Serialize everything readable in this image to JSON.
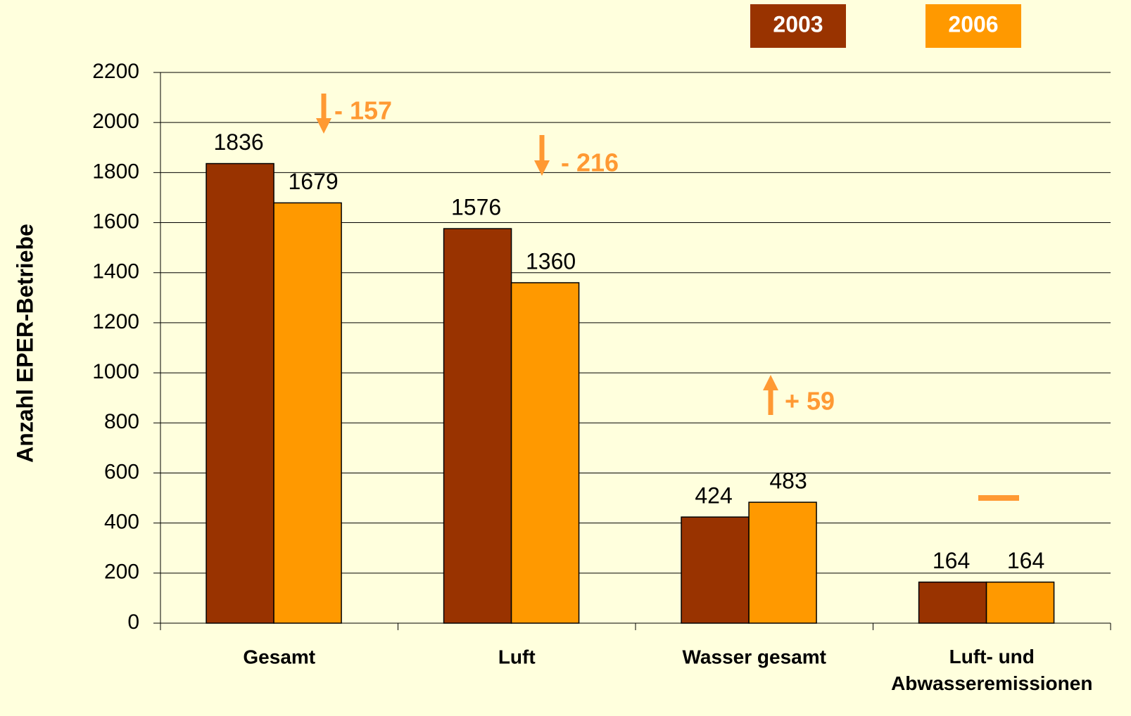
{
  "chart_data": {
    "type": "bar",
    "y_label": "Anzahl EPER-Betriebe",
    "categories": [
      "Gesamt",
      "Luft",
      "Wasser gesamt",
      "Luft- und Abwasseremissionen"
    ],
    "series": [
      {
        "name": "2003",
        "color": "#993300",
        "values": [
          1836,
          1576,
          424,
          164
        ]
      },
      {
        "name": "2006",
        "color": "#ff9900",
        "values": [
          1679,
          1360,
          483,
          164
        ]
      }
    ],
    "annotations": [
      "- 157",
      "- 216",
      "+ 59"
    ],
    "annotation_color": "#ff9933",
    "ylim": [
      0,
      2200
    ],
    "yticks": [
      0,
      200,
      400,
      600,
      800,
      1000,
      1200,
      1400,
      1600,
      1800,
      2000,
      2200
    ],
    "grid": true,
    "legend": "top-right"
  }
}
